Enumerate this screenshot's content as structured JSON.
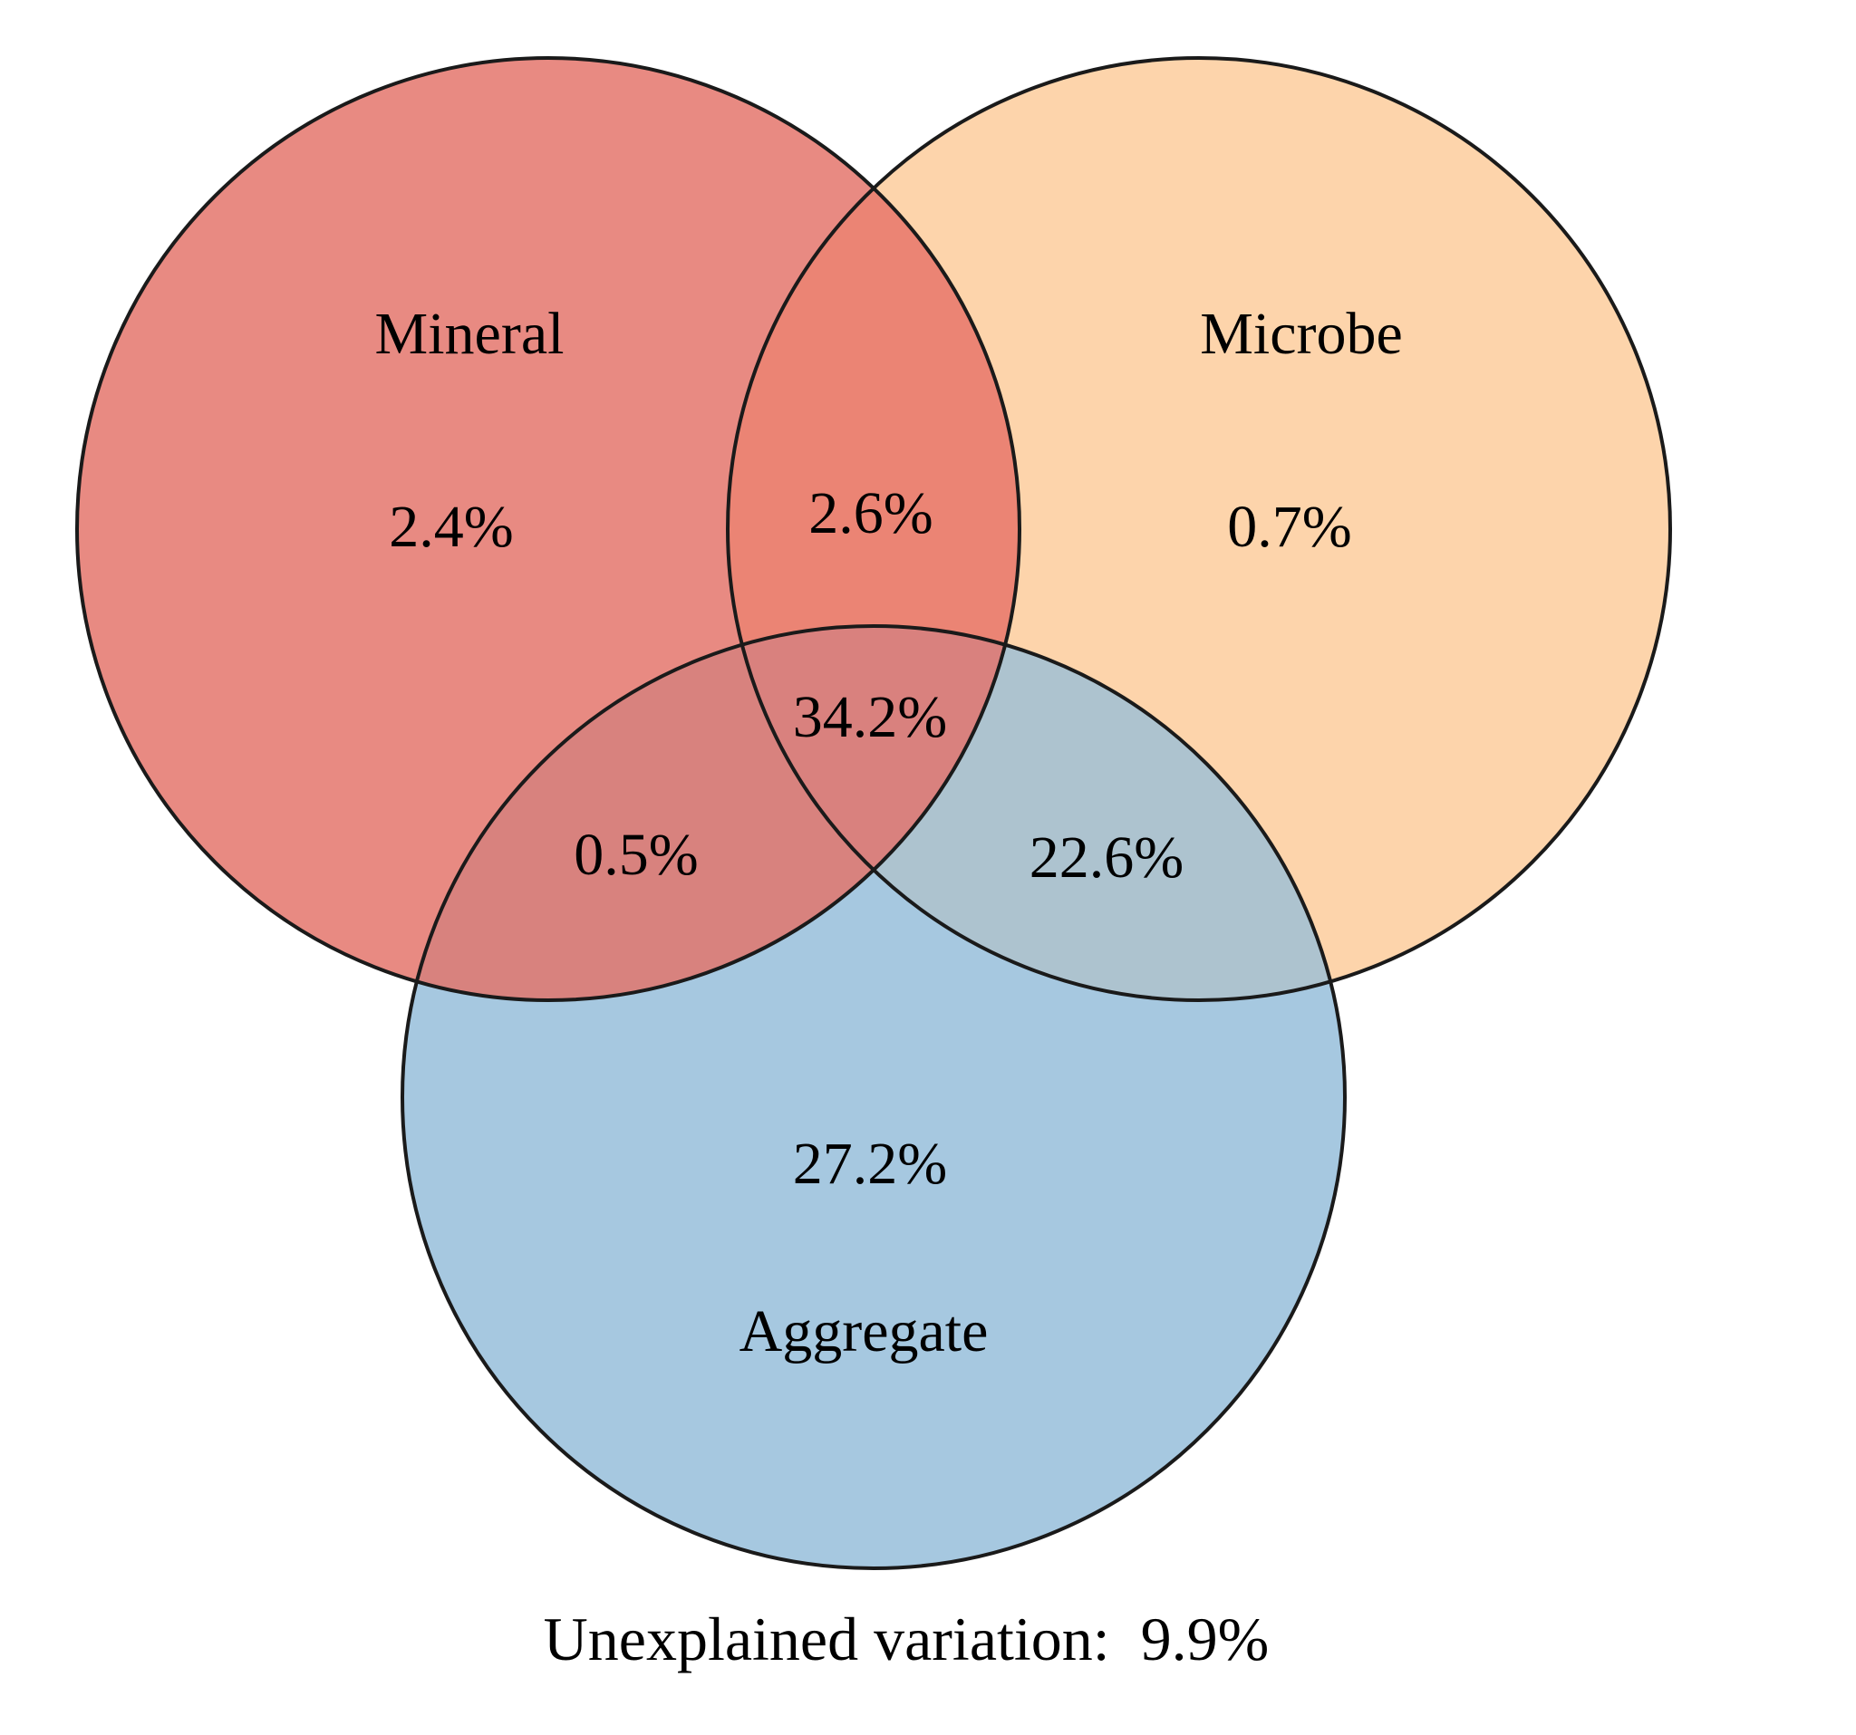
{
  "sets": [
    {
      "key": "mineral",
      "name": "Mineral",
      "color": "#E88A82"
    },
    {
      "key": "microbe",
      "name": "Microbe",
      "color": "#FDD4AB"
    },
    {
      "key": "aggregate",
      "name": "Aggregate",
      "color": "#A6C8E0"
    }
  ],
  "regions": {
    "mineral_only": "2.4%",
    "microbe_only": "0.7%",
    "aggregate_only": "27.2%",
    "mineral_microbe": "2.6%",
    "mineral_aggregate": "0.5%",
    "microbe_aggregate": "22.6%",
    "all_three": "34.2%"
  },
  "unexplained": "Unexplained variation:  9.9%"
}
